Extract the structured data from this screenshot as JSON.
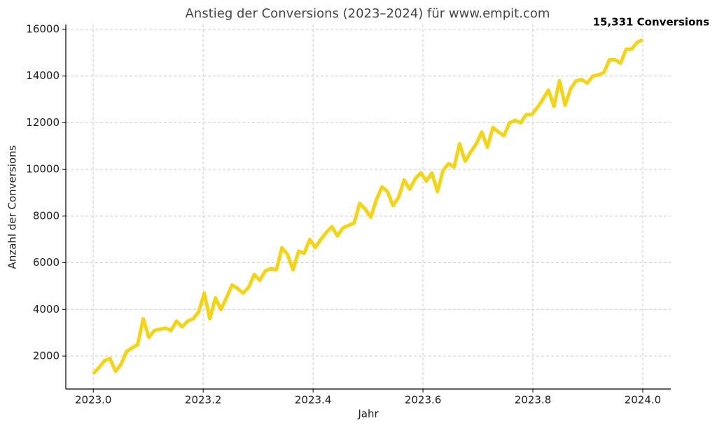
{
  "chart_data": {
    "type": "line",
    "title": "Anstieg der Conversions (2023–2024) für www.empit.com",
    "xlabel": "Jahr",
    "ylabel": "Anzahl der Conversions",
    "annotation": "15,331 Conversions",
    "x": [
      2023.0,
      2023.0101,
      2023.0202,
      2023.0303,
      2023.0404,
      2023.0505,
      2023.0606,
      2023.0707,
      2023.0808,
      2023.0909,
      2023.101,
      2023.1111,
      2023.1212,
      2023.1313,
      2023.1414,
      2023.1515,
      2023.1616,
      2023.1717,
      2023.1818,
      2023.1919,
      2023.202,
      2023.2121,
      2023.2222,
      2023.2323,
      2023.2424,
      2023.2525,
      2023.2626,
      2023.2727,
      2023.2828,
      2023.2929,
      2023.303,
      2023.3131,
      2023.3232,
      2023.3333,
      2023.3434,
      2023.3535,
      2023.3636,
      2023.3737,
      2023.3838,
      2023.3939,
      2023.404,
      2023.4141,
      2023.4242,
      2023.4343,
      2023.4444,
      2023.4545,
      2023.4646,
      2023.4747,
      2023.4848,
      2023.4949,
      2023.5051,
      2023.5152,
      2023.5253,
      2023.5354,
      2023.5455,
      2023.5556,
      2023.5657,
      2023.5758,
      2023.5859,
      2023.596,
      2023.6061,
      2023.6162,
      2023.6263,
      2023.6364,
      2023.6465,
      2023.6566,
      2023.6667,
      2023.6768,
      2023.6869,
      2023.697,
      2023.7071,
      2023.7172,
      2023.7273,
      2023.7374,
      2023.7475,
      2023.7576,
      2023.7677,
      2023.7778,
      2023.7879,
      2023.798,
      2023.8081,
      2023.8182,
      2023.8283,
      2023.8384,
      2023.8485,
      2023.8586,
      2023.8687,
      2023.8788,
      2023.8889,
      2023.899,
      2023.9091,
      2023.9192,
      2023.9293,
      2023.9394,
      2023.9495,
      2023.9596,
      2023.9697,
      2023.9798,
      2023.9899,
      2024.0
    ],
    "series": [
      {
        "name": "Conversions",
        "color": "#f5d414",
        "values": [
          1250,
          1500,
          1800,
          1900,
          1350,
          1650,
          2200,
          2350,
          2500,
          3600,
          2800,
          3100,
          3150,
          3200,
          3100,
          3500,
          3250,
          3500,
          3600,
          3900,
          4700,
          3600,
          4500,
          4000,
          4500,
          5050,
          4900,
          4700,
          4950,
          5500,
          5250,
          5650,
          5750,
          5700,
          6650,
          6350,
          5700,
          6500,
          6400,
          7000,
          6650,
          7000,
          7300,
          7550,
          7150,
          7500,
          7600,
          7700,
          8550,
          8300,
          7950,
          8700,
          9250,
          9050,
          8450,
          8800,
          9550,
          9150,
          9600,
          9850,
          9500,
          9850,
          9050,
          9950,
          10250,
          10100,
          11100,
          10350,
          10750,
          11100,
          11600,
          10950,
          11800,
          11600,
          11450,
          12000,
          12100,
          12000,
          12350,
          12350,
          12650,
          13000,
          13400,
          12700,
          13800,
          12750,
          13450,
          13800,
          13850,
          13700,
          14000,
          14050,
          14150,
          14700,
          14700,
          14550,
          15150,
          15150,
          15450,
          15550
        ]
      }
    ],
    "xlim": [
      2022.95,
      2024.051
    ],
    "xticks": [
      {
        "value": 2023.0,
        "label": "2023.0"
      },
      2023.2,
      2023.4,
      2023.6,
      2023.8,
      {
        "value": 2024.0,
        "label": "2024.0"
      }
    ],
    "ylim": [
      590,
      16210
    ],
    "yticks": [
      2000,
      4000,
      6000,
      8000,
      10000,
      12000,
      14000,
      16000
    ],
    "grid": true
  }
}
